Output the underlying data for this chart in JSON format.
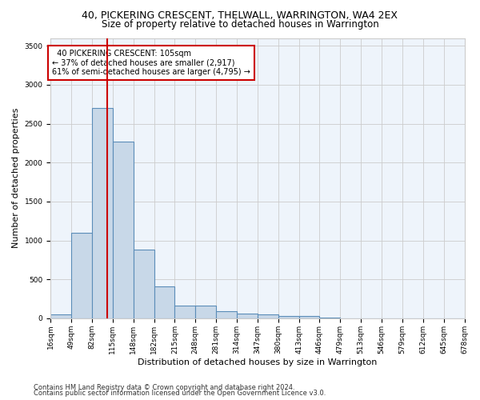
{
  "title": "40, PICKERING CRESCENT, THELWALL, WARRINGTON, WA4 2EX",
  "subtitle": "Size of property relative to detached houses in Warrington",
  "xlabel": "Distribution of detached houses by size in Warrington",
  "ylabel": "Number of detached properties",
  "bar_values": [
    50,
    1100,
    2700,
    2270,
    880,
    410,
    165,
    165,
    90,
    65,
    55,
    35,
    25,
    5,
    0,
    0,
    0,
    0,
    0,
    0
  ],
  "bar_labels": [
    "16sqm",
    "49sqm",
    "82sqm",
    "115sqm",
    "148sqm",
    "182sqm",
    "215sqm",
    "248sqm",
    "281sqm",
    "314sqm",
    "347sqm",
    "380sqm",
    "413sqm",
    "446sqm",
    "479sqm",
    "513sqm",
    "546sqm",
    "579sqm",
    "612sqm",
    "645sqm",
    "678sqm"
  ],
  "bar_color": "#c8d8e8",
  "bar_edge_color": "#5b8db8",
  "vline_x": 2.75,
  "vline_color": "#cc0000",
  "annotation_text": "  40 PICKERING CRESCENT: 105sqm\n← 37% of detached houses are smaller (2,917)\n61% of semi-detached houses are larger (4,795) →",
  "annotation_box_color": "#cc0000",
  "ylim": [
    0,
    3600
  ],
  "yticks": [
    0,
    500,
    1000,
    1500,
    2000,
    2500,
    3000,
    3500
  ],
  "grid_color": "#cccccc",
  "bg_color": "#eef4fb",
  "footer1": "Contains HM Land Registry data © Crown copyright and database right 2024.",
  "footer2": "Contains public sector information licensed under the Open Government Licence v3.0.",
  "title_fontsize": 9,
  "subtitle_fontsize": 8.5,
  "xlabel_fontsize": 8,
  "ylabel_fontsize": 8,
  "tick_fontsize": 6.5,
  "footer_fontsize": 6,
  "annotation_fontsize": 7
}
